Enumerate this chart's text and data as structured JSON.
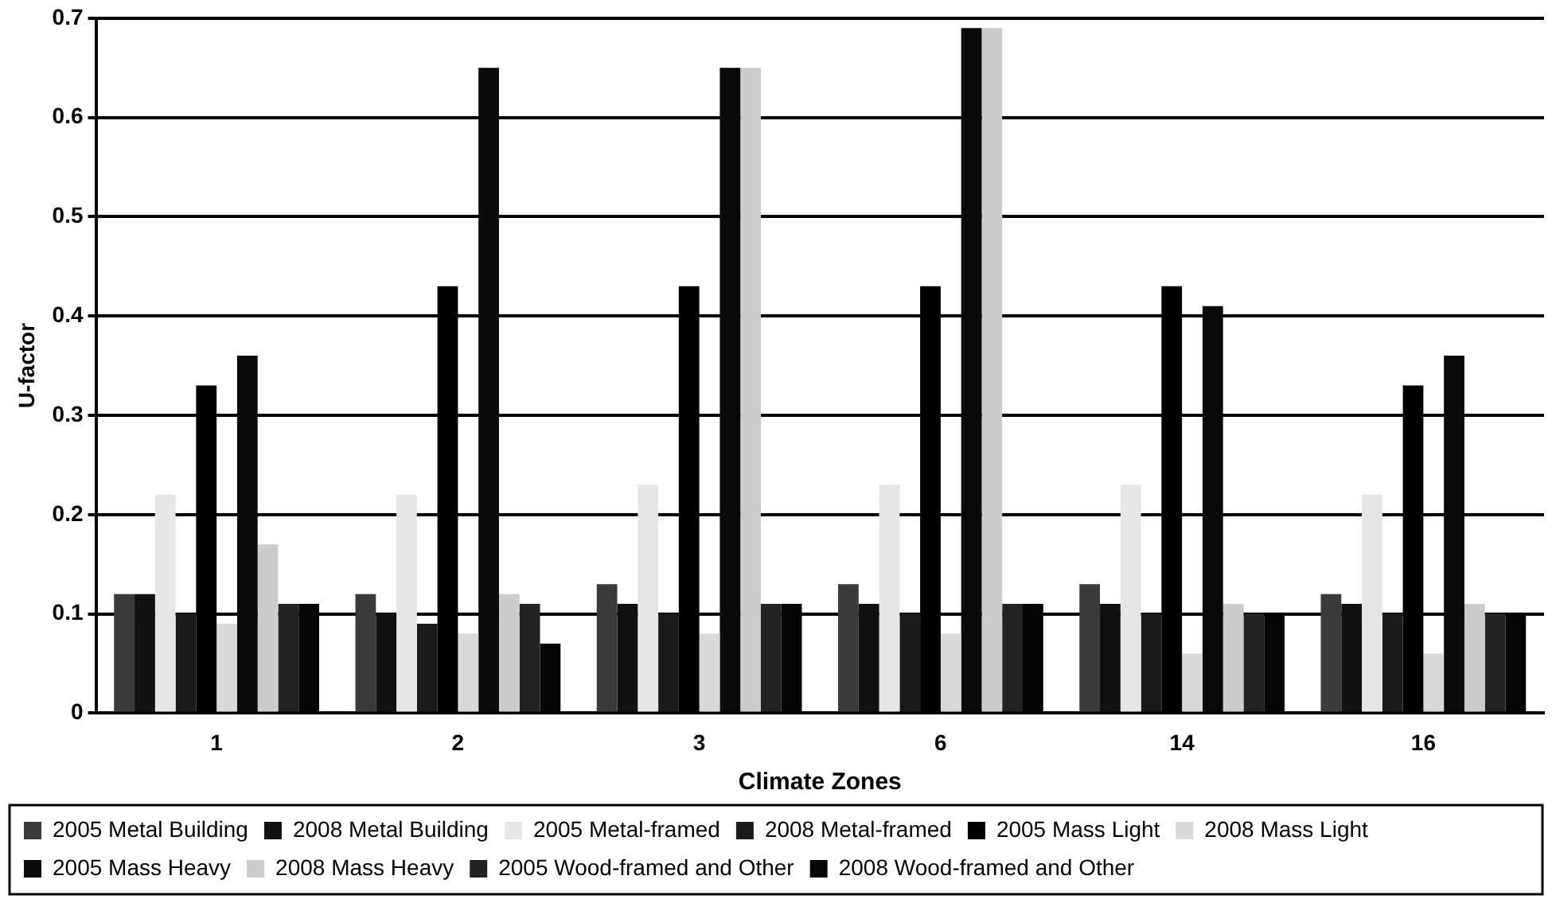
{
  "chart_data": {
    "type": "bar",
    "xlabel": "Climate Zones",
    "ylabel": "U-factor",
    "categories": [
      "1",
      "2",
      "3",
      "6",
      "14",
      "16"
    ],
    "ylim": [
      0,
      0.7
    ],
    "yticks": [
      0,
      0.1,
      0.2,
      0.3,
      0.4,
      0.5,
      0.6,
      0.7
    ],
    "grid": "y",
    "legend": "bottom",
    "series": [
      {
        "name": "2005 Metal Building",
        "color": "#3a3a3a",
        "values": [
          0.12,
          0.12,
          0.13,
          0.13,
          0.13,
          0.12
        ]
      },
      {
        "name": "2008 Metal Building",
        "color": "#111111",
        "values": [
          0.12,
          0.1,
          0.11,
          0.11,
          0.11,
          0.11
        ]
      },
      {
        "name": "2005 Metal-framed",
        "color": "#e6e6e6",
        "values": [
          0.22,
          0.22,
          0.23,
          0.23,
          0.23,
          0.22
        ]
      },
      {
        "name": "2008 Metal-framed",
        "color": "#1a1a1a",
        "values": [
          0.1,
          0.09,
          0.1,
          0.1,
          0.1,
          0.1
        ]
      },
      {
        "name": "2005 Mass Light",
        "color": "#000000",
        "values": [
          0.33,
          0.43,
          0.43,
          0.43,
          0.43,
          0.33
        ]
      },
      {
        "name": "2008 Mass Light",
        "color": "#d9d9d9",
        "values": [
          0.09,
          0.08,
          0.08,
          0.08,
          0.06,
          0.06
        ]
      },
      {
        "name": "2005 Mass Heavy",
        "color": "#0a0a0a",
        "values": [
          0.36,
          0.65,
          0.65,
          0.69,
          0.41,
          0.36
        ]
      },
      {
        "name": "2008 Mass Heavy",
        "color": "#cccccc",
        "values": [
          0.17,
          0.12,
          0.65,
          0.69,
          0.11,
          0.11
        ]
      },
      {
        "name": "2005 Wood-framed and Other",
        "color": "#222222",
        "values": [
          0.11,
          0.11,
          0.11,
          0.11,
          0.1,
          0.1
        ]
      },
      {
        "name": "2008 Wood-framed and Other",
        "color": "#050505",
        "values": [
          0.11,
          0.07,
          0.11,
          0.11,
          0.1,
          0.1
        ]
      }
    ]
  }
}
